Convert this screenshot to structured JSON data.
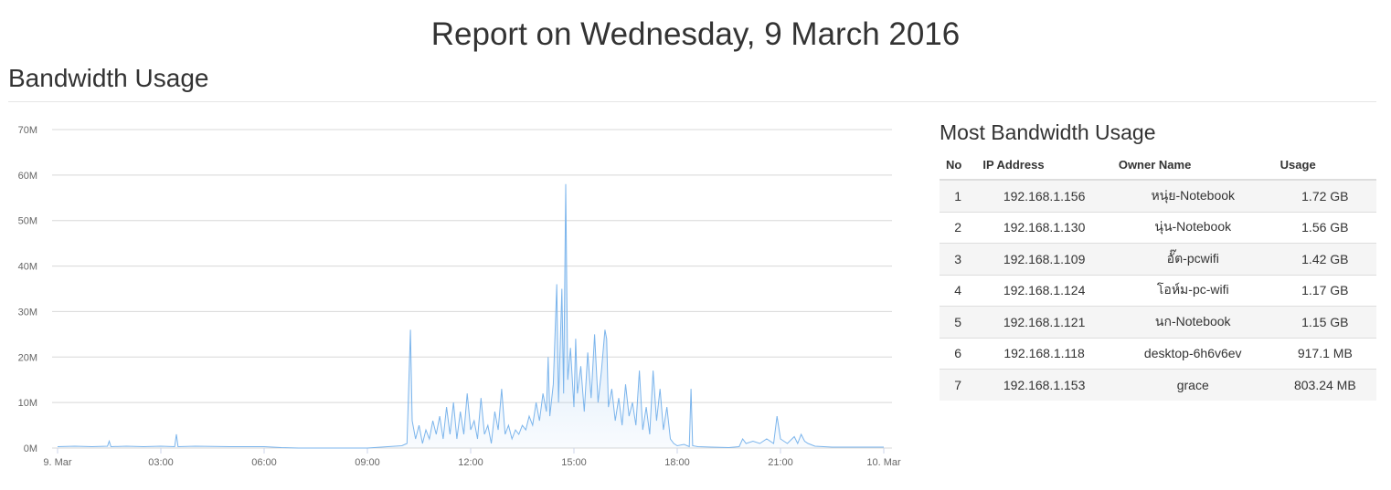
{
  "page": {
    "title": "Report on Wednesday, 9 March 2016",
    "section": "Bandwidth Usage"
  },
  "chart_data": {
    "type": "area",
    "color": "#7cb5ec",
    "grid": true,
    "xlim": [
      0,
      24
    ],
    "xticks": [
      {
        "value": 0,
        "label": "9. Mar"
      },
      {
        "value": 3,
        "label": "03:00"
      },
      {
        "value": 6,
        "label": "06:00"
      },
      {
        "value": 9,
        "label": "09:00"
      },
      {
        "value": 12,
        "label": "12:00"
      },
      {
        "value": 15,
        "label": "15:00"
      },
      {
        "value": 18,
        "label": "18:00"
      },
      {
        "value": 21,
        "label": "21:00"
      },
      {
        "value": 24,
        "label": "10. Mar"
      }
    ],
    "ylim": [
      0,
      70
    ],
    "yticks": [
      {
        "value": 0,
        "label": "0M"
      },
      {
        "value": 10,
        "label": "10M"
      },
      {
        "value": 20,
        "label": "20M"
      },
      {
        "value": 30,
        "label": "30M"
      },
      {
        "value": 40,
        "label": "40M"
      },
      {
        "value": 50,
        "label": "50M"
      },
      {
        "value": 60,
        "label": "60M"
      },
      {
        "value": 70,
        "label": "70M"
      }
    ],
    "x": [
      0,
      0.5,
      1,
      1.45,
      1.5,
      1.55,
      2,
      2.5,
      3,
      3.4,
      3.45,
      3.5,
      4,
      5,
      6,
      6.5,
      7,
      8,
      9,
      10,
      10.15,
      10.25,
      10.3,
      10.4,
      10.5,
      10.6,
      10.7,
      10.8,
      10.9,
      11,
      11.1,
      11.2,
      11.3,
      11.4,
      11.5,
      11.6,
      11.7,
      11.8,
      11.9,
      12,
      12.1,
      12.2,
      12.3,
      12.4,
      12.5,
      12.6,
      12.7,
      12.8,
      12.9,
      13,
      13.1,
      13.2,
      13.3,
      13.4,
      13.5,
      13.6,
      13.7,
      13.8,
      13.9,
      14,
      14.1,
      14.2,
      14.25,
      14.3,
      14.4,
      14.5,
      14.55,
      14.65,
      14.7,
      14.76,
      14.82,
      14.9,
      15,
      15.05,
      15.1,
      15.2,
      15.3,
      15.4,
      15.5,
      15.6,
      15.7,
      15.8,
      15.9,
      15.95,
      16,
      16.1,
      16.2,
      16.3,
      16.4,
      16.5,
      16.6,
      16.7,
      16.8,
      16.9,
      17,
      17.1,
      17.2,
      17.3,
      17.4,
      17.5,
      17.6,
      17.7,
      17.8,
      17.9,
      18,
      18.2,
      18.35,
      18.4,
      18.45,
      18.6,
      19,
      19.5,
      19.8,
      19.9,
      20,
      20.2,
      20.4,
      20.6,
      20.8,
      20.9,
      21,
      21.2,
      21.4,
      21.5,
      21.6,
      21.7,
      21.8,
      22,
      22.5,
      23,
      24
    ],
    "values": [
      0.3,
      0.4,
      0.3,
      0.4,
      1.5,
      0.3,
      0.4,
      0.3,
      0.4,
      0.3,
      3,
      0.3,
      0.4,
      0.3,
      0.3,
      0.1,
      0,
      0,
      0,
      0.5,
      1,
      26,
      6,
      2,
      5,
      1,
      4,
      2,
      6,
      3,
      7,
      2,
      9,
      3,
      10,
      2,
      8,
      3,
      12,
      4,
      6,
      2,
      11,
      3,
      5,
      1,
      8,
      4,
      13,
      3,
      5,
      2,
      4,
      3,
      5,
      4,
      7,
      5,
      10,
      6,
      12,
      8,
      20,
      7,
      14,
      36,
      10,
      35,
      12,
      58,
      15,
      22,
      9,
      24,
      12,
      18,
      8,
      21,
      11,
      25,
      10,
      17,
      26,
      24,
      9,
      13,
      6,
      11,
      5,
      14,
      7,
      10,
      5,
      17,
      4,
      9,
      3,
      17,
      6,
      13,
      4,
      9,
      2,
      1,
      0.5,
      0.8,
      0.3,
      13,
      0.5,
      0.3,
      0.2,
      0.1,
      0.3,
      2,
      1,
      1.5,
      1,
      2,
      1,
      7,
      2,
      1,
      2.5,
      1,
      3,
      1.5,
      1,
      0.4,
      0.2,
      0.2,
      0.2
    ]
  },
  "table": {
    "title": "Most Bandwidth Usage",
    "headers": [
      "No",
      "IP Address",
      "Owner Name",
      "Usage"
    ],
    "rows": [
      [
        1,
        "192.168.1.156",
        "หนุ่ย-Notebook",
        "1.72 GB"
      ],
      [
        2,
        "192.168.1.130",
        "นุ่น-Notebook",
        "1.56 GB"
      ],
      [
        3,
        "192.168.1.109",
        "อั๊ต-pcwifi",
        "1.42 GB"
      ],
      [
        4,
        "192.168.1.124",
        "โอห์ม-pc-wifi",
        "1.17 GB"
      ],
      [
        5,
        "192.168.1.121",
        "นก-Notebook",
        "1.15 GB"
      ],
      [
        6,
        "192.168.1.118",
        "desktop-6h6v6ev",
        "917.1 MB"
      ],
      [
        7,
        "192.168.1.153",
        "grace",
        "803.24 MB"
      ]
    ]
  }
}
